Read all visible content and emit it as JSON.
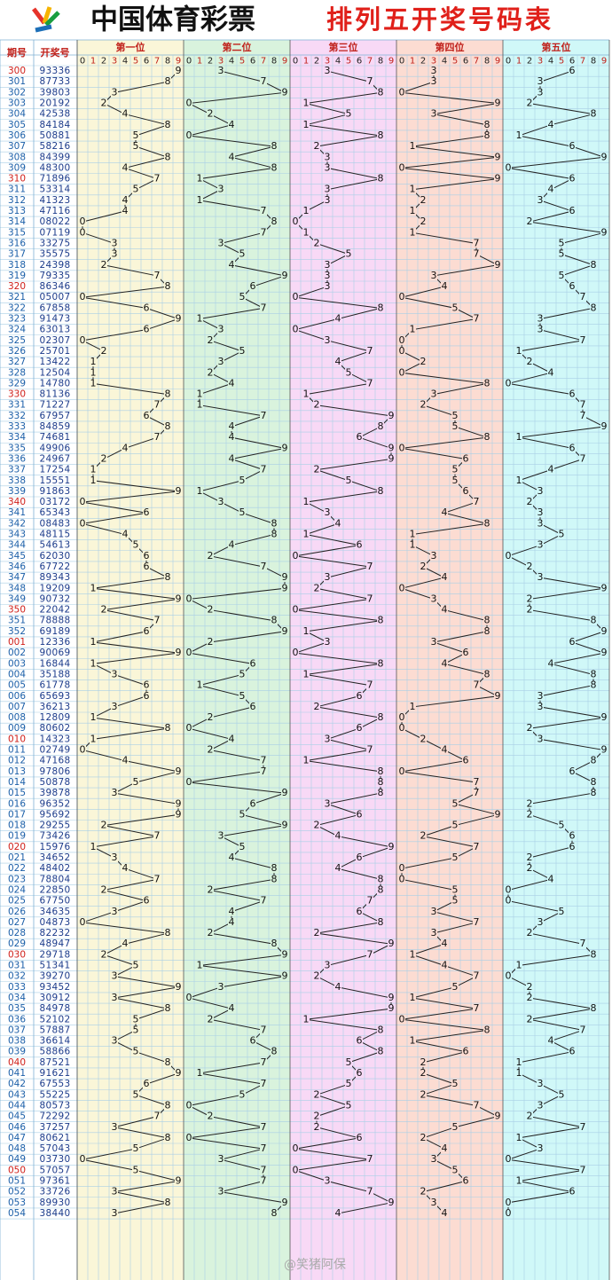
{
  "header": {
    "title": "中国体育彩票",
    "subtitle": "排列五开奖号码表"
  },
  "table": {
    "columns": [
      "期号",
      "开奖号"
    ],
    "positions": [
      "第一位",
      "第二位",
      "第三位",
      "第四位",
      "第五位"
    ],
    "digit_axis": [
      0,
      1,
      2,
      3,
      4,
      5,
      6,
      7,
      8,
      9
    ],
    "rows": [
      {
        "period": "300",
        "number": "93336",
        "digits": [
          9,
          3,
          3,
          3,
          6
        ]
      },
      {
        "period": "301",
        "number": "87733",
        "digits": [
          8,
          7,
          7,
          3,
          3
        ]
      },
      {
        "period": "302",
        "number": "39803",
        "digits": [
          3,
          9,
          8,
          0,
          3
        ]
      },
      {
        "period": "303",
        "number": "20192",
        "digits": [
          2,
          0,
          1,
          9,
          2
        ]
      },
      {
        "period": "304",
        "number": "42538",
        "digits": [
          4,
          2,
          5,
          3,
          8
        ]
      },
      {
        "period": "305",
        "number": "84184",
        "digits": [
          8,
          4,
          1,
          8,
          4
        ]
      },
      {
        "period": "306",
        "number": "50881",
        "digits": [
          5,
          0,
          8,
          8,
          1
        ]
      },
      {
        "period": "307",
        "number": "58216",
        "digits": [
          5,
          8,
          2,
          1,
          6
        ]
      },
      {
        "period": "308",
        "number": "84399",
        "digits": [
          8,
          4,
          3,
          9,
          9
        ]
      },
      {
        "period": "309",
        "number": "48300",
        "digits": [
          4,
          8,
          3,
          0,
          0
        ]
      },
      {
        "period": "310",
        "number": "71896",
        "digits": [
          7,
          1,
          8,
          9,
          6
        ]
      },
      {
        "period": "311",
        "number": "53314",
        "digits": [
          5,
          3,
          3,
          1,
          4
        ]
      },
      {
        "period": "312",
        "number": "41323",
        "digits": [
          4,
          1,
          3,
          2,
          3
        ]
      },
      {
        "period": "313",
        "number": "47116",
        "digits": [
          4,
          7,
          1,
          1,
          6
        ]
      },
      {
        "period": "314",
        "number": "08022",
        "digits": [
          0,
          8,
          0,
          2,
          2
        ]
      },
      {
        "period": "315",
        "number": "07119",
        "digits": [
          0,
          7,
          1,
          1,
          9
        ]
      },
      {
        "period": "316",
        "number": "33275",
        "digits": [
          3,
          3,
          2,
          7,
          5
        ]
      },
      {
        "period": "317",
        "number": "35575",
        "digits": [
          3,
          5,
          5,
          7,
          5
        ]
      },
      {
        "period": "318",
        "number": "24398",
        "digits": [
          2,
          4,
          3,
          9,
          8
        ]
      },
      {
        "period": "319",
        "number": "79335",
        "digits": [
          7,
          9,
          3,
          3,
          5
        ]
      },
      {
        "period": "320",
        "number": "86346",
        "digits": [
          8,
          6,
          3,
          4,
          6
        ]
      },
      {
        "period": "321",
        "number": "05007",
        "digits": [
          0,
          5,
          0,
          0,
          7
        ]
      },
      {
        "period": "322",
        "number": "67858",
        "digits": [
          6,
          7,
          8,
          5,
          8
        ]
      },
      {
        "period": "323",
        "number": "91473",
        "digits": [
          9,
          1,
          4,
          7,
          3
        ]
      },
      {
        "period": "324",
        "number": "63013",
        "digits": [
          6,
          3,
          0,
          1,
          3
        ]
      },
      {
        "period": "325",
        "number": "02307",
        "digits": [
          0,
          2,
          3,
          0,
          7
        ]
      },
      {
        "period": "326",
        "number": "25701",
        "digits": [
          2,
          5,
          7,
          0,
          1
        ]
      },
      {
        "period": "327",
        "number": "13422",
        "digits": [
          1,
          3,
          4,
          2,
          2
        ]
      },
      {
        "period": "328",
        "number": "12504",
        "digits": [
          1,
          2,
          5,
          0,
          4
        ]
      },
      {
        "period": "329",
        "number": "14780",
        "digits": [
          1,
          4,
          7,
          8,
          0
        ]
      },
      {
        "period": "330",
        "number": "81136",
        "digits": [
          8,
          1,
          1,
          3,
          6
        ]
      },
      {
        "period": "331",
        "number": "71227",
        "digits": [
          7,
          1,
          2,
          2,
          7
        ]
      },
      {
        "period": "332",
        "number": "67957",
        "digits": [
          6,
          7,
          9,
          5,
          7
        ]
      },
      {
        "period": "333",
        "number": "84859",
        "digits": [
          8,
          4,
          8,
          5,
          9
        ]
      },
      {
        "period": "334",
        "number": "74681",
        "digits": [
          7,
          4,
          6,
          8,
          1
        ]
      },
      {
        "period": "335",
        "number": "49906",
        "digits": [
          4,
          9,
          9,
          0,
          6
        ]
      },
      {
        "period": "336",
        "number": "24967",
        "digits": [
          2,
          4,
          9,
          6,
          7
        ]
      },
      {
        "period": "337",
        "number": "17254",
        "digits": [
          1,
          7,
          2,
          5,
          4
        ]
      },
      {
        "period": "338",
        "number": "15551",
        "digits": [
          1,
          5,
          5,
          5,
          1
        ]
      },
      {
        "period": "339",
        "number": "91863",
        "digits": [
          9,
          1,
          8,
          6,
          3
        ]
      },
      {
        "period": "340",
        "number": "03172",
        "digits": [
          0,
          3,
          1,
          7,
          2
        ]
      },
      {
        "period": "341",
        "number": "65343",
        "digits": [
          6,
          5,
          3,
          4,
          3
        ]
      },
      {
        "period": "342",
        "number": "08483",
        "digits": [
          0,
          8,
          4,
          8,
          3
        ]
      },
      {
        "period": "343",
        "number": "48115",
        "digits": [
          4,
          8,
          1,
          1,
          5
        ]
      },
      {
        "period": "344",
        "number": "54613",
        "digits": [
          5,
          4,
          6,
          1,
          3
        ]
      },
      {
        "period": "345",
        "number": "62030",
        "digits": [
          6,
          2,
          0,
          3,
          0
        ]
      },
      {
        "period": "346",
        "number": "67722",
        "digits": [
          6,
          7,
          7,
          2,
          2
        ]
      },
      {
        "period": "347",
        "number": "89343",
        "digits": [
          8,
          9,
          3,
          4,
          3
        ]
      },
      {
        "period": "348",
        "number": "19209",
        "digits": [
          1,
          9,
          2,
          0,
          9
        ]
      },
      {
        "period": "349",
        "number": "90732",
        "digits": [
          9,
          0,
          7,
          3,
          2
        ]
      },
      {
        "period": "350",
        "number": "22042",
        "digits": [
          2,
          2,
          0,
          4,
          2
        ]
      },
      {
        "period": "351",
        "number": "78888",
        "digits": [
          7,
          8,
          8,
          8,
          8
        ]
      },
      {
        "period": "352",
        "number": "69189",
        "digits": [
          6,
          9,
          1,
          8,
          9
        ]
      },
      {
        "period": "001",
        "number": "12336",
        "digits": [
          1,
          2,
          3,
          3,
          6
        ]
      },
      {
        "period": "002",
        "number": "90069",
        "digits": [
          9,
          0,
          0,
          6,
          9
        ]
      },
      {
        "period": "003",
        "number": "16844",
        "digits": [
          1,
          6,
          8,
          4,
          4
        ]
      },
      {
        "period": "004",
        "number": "35188",
        "digits": [
          3,
          5,
          1,
          8,
          8
        ]
      },
      {
        "period": "005",
        "number": "61778",
        "digits": [
          6,
          1,
          7,
          7,
          8
        ]
      },
      {
        "period": "006",
        "number": "65693",
        "digits": [
          6,
          5,
          6,
          9,
          3
        ]
      },
      {
        "period": "007",
        "number": "36213",
        "digits": [
          3,
          6,
          2,
          1,
          3
        ]
      },
      {
        "period": "008",
        "number": "12809",
        "digits": [
          1,
          2,
          8,
          0,
          9
        ]
      },
      {
        "period": "009",
        "number": "80602",
        "digits": [
          8,
          0,
          6,
          0,
          2
        ]
      },
      {
        "period": "010",
        "number": "14323",
        "digits": [
          1,
          4,
          3,
          2,
          3
        ]
      },
      {
        "period": "011",
        "number": "02749",
        "digits": [
          0,
          2,
          7,
          4,
          9
        ]
      },
      {
        "period": "012",
        "number": "47168",
        "digits": [
          4,
          7,
          1,
          6,
          8
        ]
      },
      {
        "period": "013",
        "number": "97806",
        "digits": [
          9,
          7,
          8,
          0,
          6
        ]
      },
      {
        "period": "014",
        "number": "50878",
        "digits": [
          5,
          0,
          8,
          7,
          8
        ]
      },
      {
        "period": "015",
        "number": "39878",
        "digits": [
          3,
          9,
          8,
          7,
          8
        ]
      },
      {
        "period": "016",
        "number": "96352",
        "digits": [
          9,
          6,
          3,
          5,
          2
        ]
      },
      {
        "period": "017",
        "number": "95692",
        "digits": [
          9,
          5,
          6,
          9,
          2
        ]
      },
      {
        "period": "018",
        "number": "29255",
        "digits": [
          2,
          9,
          2,
          5,
          5
        ]
      },
      {
        "period": "019",
        "number": "73426",
        "digits": [
          7,
          3,
          4,
          2,
          6
        ]
      },
      {
        "period": "020",
        "number": "15976",
        "digits": [
          1,
          5,
          9,
          7,
          6
        ]
      },
      {
        "period": "021",
        "number": "34652",
        "digits": [
          3,
          4,
          6,
          5,
          2
        ]
      },
      {
        "period": "022",
        "number": "48402",
        "digits": [
          4,
          8,
          4,
          0,
          2
        ]
      },
      {
        "period": "023",
        "number": "78804",
        "digits": [
          7,
          8,
          8,
          0,
          4
        ]
      },
      {
        "period": "024",
        "number": "22850",
        "digits": [
          2,
          2,
          8,
          5,
          0
        ]
      },
      {
        "period": "025",
        "number": "67750",
        "digits": [
          6,
          7,
          7,
          5,
          0
        ]
      },
      {
        "period": "026",
        "number": "34635",
        "digits": [
          3,
          4,
          6,
          3,
          5
        ]
      },
      {
        "period": "027",
        "number": "04873",
        "digits": [
          0,
          4,
          8,
          7,
          3
        ]
      },
      {
        "period": "028",
        "number": "82232",
        "digits": [
          8,
          2,
          2,
          3,
          2
        ]
      },
      {
        "period": "029",
        "number": "48947",
        "digits": [
          4,
          8,
          9,
          4,
          7
        ]
      },
      {
        "period": "030",
        "number": "29718",
        "digits": [
          2,
          9,
          7,
          1,
          8
        ]
      },
      {
        "period": "031",
        "number": "51341",
        "digits": [
          5,
          1,
          3,
          4,
          1
        ]
      },
      {
        "period": "032",
        "number": "39270",
        "digits": [
          3,
          9,
          2,
          7,
          0
        ]
      },
      {
        "period": "033",
        "number": "93452",
        "digits": [
          9,
          3,
          4,
          5,
          2
        ]
      },
      {
        "period": "034",
        "number": "30912",
        "digits": [
          3,
          0,
          9,
          1,
          2
        ]
      },
      {
        "period": "035",
        "number": "84978",
        "digits": [
          8,
          4,
          9,
          7,
          8
        ]
      },
      {
        "period": "036",
        "number": "52102",
        "digits": [
          5,
          2,
          1,
          0,
          2
        ]
      },
      {
        "period": "037",
        "number": "57887",
        "digits": [
          5,
          7,
          8,
          8,
          7
        ]
      },
      {
        "period": "038",
        "number": "36614",
        "digits": [
          3,
          6,
          6,
          1,
          4
        ]
      },
      {
        "period": "039",
        "number": "58866",
        "digits": [
          5,
          8,
          8,
          6,
          6
        ]
      },
      {
        "period": "040",
        "number": "87521",
        "digits": [
          8,
          7,
          5,
          2,
          1
        ]
      },
      {
        "period": "041",
        "number": "91621",
        "digits": [
          9,
          1,
          6,
          2,
          1
        ]
      },
      {
        "period": "042",
        "number": "67553",
        "digits": [
          6,
          7,
          5,
          5,
          3
        ]
      },
      {
        "period": "043",
        "number": "55225",
        "digits": [
          5,
          5,
          2,
          2,
          5
        ]
      },
      {
        "period": "044",
        "number": "80573",
        "digits": [
          8,
          0,
          5,
          7,
          3
        ]
      },
      {
        "period": "045",
        "number": "72292",
        "digits": [
          7,
          2,
          2,
          9,
          2
        ]
      },
      {
        "period": "046",
        "number": "37257",
        "digits": [
          3,
          7,
          2,
          5,
          7
        ]
      },
      {
        "period": "047",
        "number": "80621",
        "digits": [
          8,
          0,
          6,
          2,
          1
        ]
      },
      {
        "period": "048",
        "number": "57043",
        "digits": [
          5,
          7,
          0,
          4,
          3
        ]
      },
      {
        "period": "049",
        "number": "03730",
        "digits": [
          0,
          3,
          7,
          3,
          0
        ]
      },
      {
        "period": "050",
        "number": "57057",
        "digits": [
          5,
          7,
          0,
          5,
          7
        ]
      },
      {
        "period": "051",
        "number": "97361",
        "digits": [
          9,
          7,
          3,
          6,
          1
        ]
      },
      {
        "period": "052",
        "number": "33726",
        "digits": [
          3,
          3,
          7,
          2,
          6
        ]
      },
      {
        "period": "053",
        "number": "89930",
        "digits": [
          8,
          9,
          9,
          3,
          0
        ]
      },
      {
        "period": "054",
        "number": "38440",
        "digits": [
          3,
          8,
          4,
          4,
          0
        ]
      }
    ]
  },
  "watermark": "@笑猪阿保"
}
